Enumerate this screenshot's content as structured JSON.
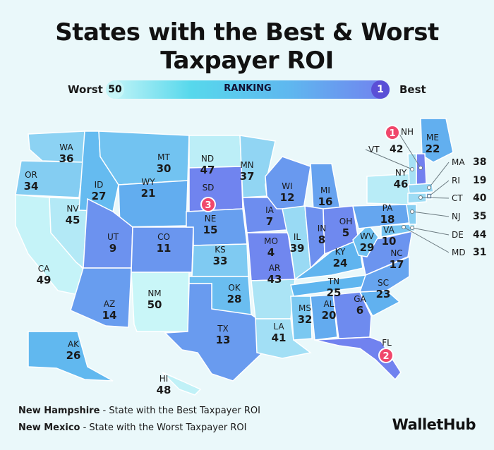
{
  "title_line1": "States with the Best & Worst",
  "title_line2": "Taxpayer ROI",
  "legend": {
    "worst_label": "Worst",
    "best_label": "Best",
    "bar_label": "RANKING",
    "worst_rank": "50",
    "best_rank": "1"
  },
  "colors": {
    "rank_low": "#7280ef",
    "rank_mid": "#5fb7ef",
    "rank_high": "#c9f6f8",
    "badge": "#f0476b"
  },
  "states": [
    {
      "abbr": "WA",
      "rank": "36"
    },
    {
      "abbr": "OR",
      "rank": "34"
    },
    {
      "abbr": "CA",
      "rank": "49"
    },
    {
      "abbr": "NV",
      "rank": "45"
    },
    {
      "abbr": "ID",
      "rank": "27"
    },
    {
      "abbr": "MT",
      "rank": "30"
    },
    {
      "abbr": "WY",
      "rank": "21"
    },
    {
      "abbr": "UT",
      "rank": "9"
    },
    {
      "abbr": "AZ",
      "rank": "14"
    },
    {
      "abbr": "CO",
      "rank": "11"
    },
    {
      "abbr": "NM",
      "rank": "50"
    },
    {
      "abbr": "ND",
      "rank": "47"
    },
    {
      "abbr": "SD",
      "rank": "3"
    },
    {
      "abbr": "NE",
      "rank": "15"
    },
    {
      "abbr": "KS",
      "rank": "33"
    },
    {
      "abbr": "OK",
      "rank": "28"
    },
    {
      "abbr": "TX",
      "rank": "13"
    },
    {
      "abbr": "MN",
      "rank": "37"
    },
    {
      "abbr": "IA",
      "rank": "7"
    },
    {
      "abbr": "MO",
      "rank": "4"
    },
    {
      "abbr": "AR",
      "rank": "43"
    },
    {
      "abbr": "LA",
      "rank": "41"
    },
    {
      "abbr": "WI",
      "rank": "12"
    },
    {
      "abbr": "IL",
      "rank": "39"
    },
    {
      "abbr": "MI",
      "rank": "16"
    },
    {
      "abbr": "IN",
      "rank": "8"
    },
    {
      "abbr": "OH",
      "rank": "5"
    },
    {
      "abbr": "KY",
      "rank": "24"
    },
    {
      "abbr": "TN",
      "rank": "25"
    },
    {
      "abbr": "MS",
      "rank": "32"
    },
    {
      "abbr": "AL",
      "rank": "20"
    },
    {
      "abbr": "GA",
      "rank": "6"
    },
    {
      "abbr": "FL",
      "rank": "2"
    },
    {
      "abbr": "SC",
      "rank": "23"
    },
    {
      "abbr": "NC",
      "rank": "17"
    },
    {
      "abbr": "VA",
      "rank": "10"
    },
    {
      "abbr": "WV",
      "rank": "29"
    },
    {
      "abbr": "PA",
      "rank": "18"
    },
    {
      "abbr": "NY",
      "rank": "46"
    },
    {
      "abbr": "ME",
      "rank": "22"
    },
    {
      "abbr": "NH",
      "rank": "1"
    },
    {
      "abbr": "VT",
      "rank": "42"
    },
    {
      "abbr": "MA",
      "rank": "38"
    },
    {
      "abbr": "RI",
      "rank": "19"
    },
    {
      "abbr": "CT",
      "rank": "40"
    },
    {
      "abbr": "NJ",
      "rank": "35"
    },
    {
      "abbr": "DE",
      "rank": "44"
    },
    {
      "abbr": "MD",
      "rank": "31"
    },
    {
      "abbr": "AK",
      "rank": "26"
    },
    {
      "abbr": "HI",
      "rank": "48"
    }
  ],
  "footer": {
    "best_state": "New Hampshire",
    "best_text": " - State with the Best Taxpayer ROI",
    "worst_state": "New Mexico",
    "worst_text": " - State with the Worst Taxpayer ROI"
  },
  "logo": "WalletHub"
}
